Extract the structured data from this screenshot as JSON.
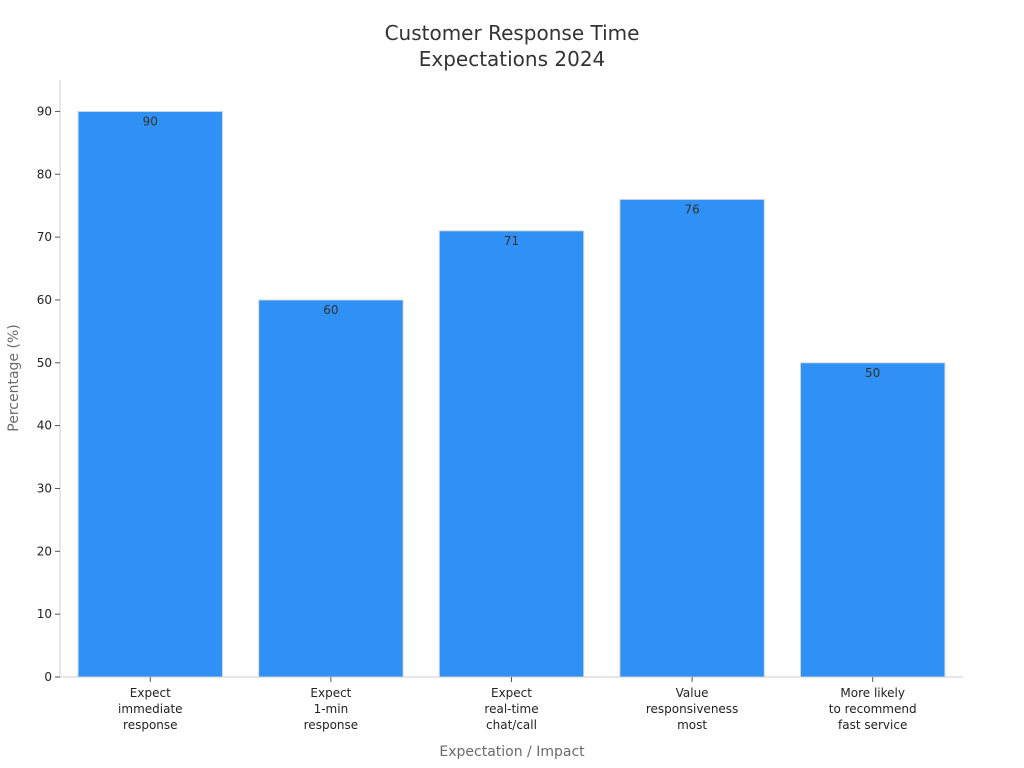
{
  "chart_data": {
    "type": "bar",
    "title": [
      "Customer Response Time",
      "Expectations 2024"
    ],
    "xlabel": "Expectation / Impact",
    "ylabel": "Percentage (%)",
    "categories": [
      [
        "Expect",
        "immediate",
        "response"
      ],
      [
        "Expect",
        "1-min",
        "response"
      ],
      [
        "Expect",
        "real-time",
        "chat/call"
      ],
      [
        "Value",
        "responsiveness",
        "most"
      ],
      [
        "More likely",
        "to recommend",
        "fast service"
      ]
    ],
    "values": [
      90,
      60,
      71,
      76,
      50
    ],
    "data_labels": [
      "90",
      "60",
      "71",
      "76",
      "50"
    ],
    "yticks": [
      0,
      10,
      20,
      30,
      40,
      50,
      60,
      70,
      80,
      90
    ],
    "ylim": [
      0,
      95
    ],
    "grid": false,
    "legend": "none",
    "bar_color": "#2f91f6"
  }
}
